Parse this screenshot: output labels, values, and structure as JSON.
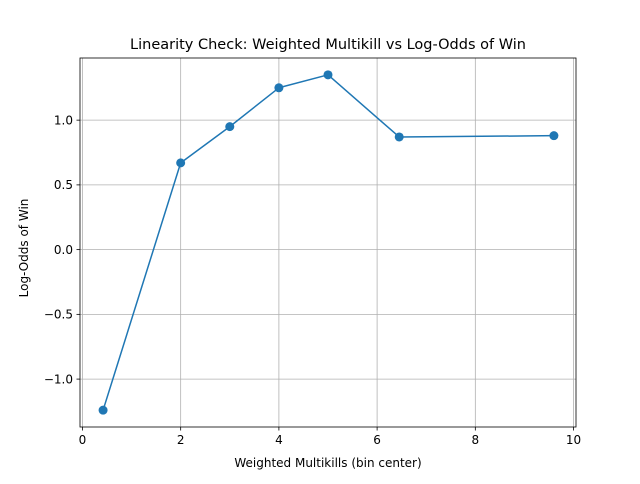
{
  "chart_data": {
    "type": "line",
    "title": "Linearity Check: Weighted Multikill vs Log-Odds of Win",
    "xlabel": "Weighted Multikills (bin center)",
    "ylabel": "Log-Odds of Win",
    "xlim": [
      -0.05,
      10.05
    ],
    "ylim": [
      -1.37,
      1.48
    ],
    "x_ticks": [
      0,
      2,
      4,
      6,
      8,
      10
    ],
    "x_tick_labels": [
      "0",
      "2",
      "4",
      "6",
      "8",
      "10"
    ],
    "y_ticks": [
      -1.0,
      -0.5,
      0.0,
      0.5,
      1.0
    ],
    "y_tick_labels": [
      "−1.0",
      "−0.5",
      "0.0",
      "0.5",
      "1.0"
    ],
    "grid": true,
    "series": [
      {
        "color": "#1f77b4",
        "marker": "circle",
        "x": [
          0.42,
          2.0,
          3.0,
          4.0,
          5.0,
          6.45,
          9.6
        ],
        "y": [
          -1.24,
          0.67,
          0.95,
          1.25,
          1.35,
          0.87,
          0.88
        ]
      }
    ]
  }
}
